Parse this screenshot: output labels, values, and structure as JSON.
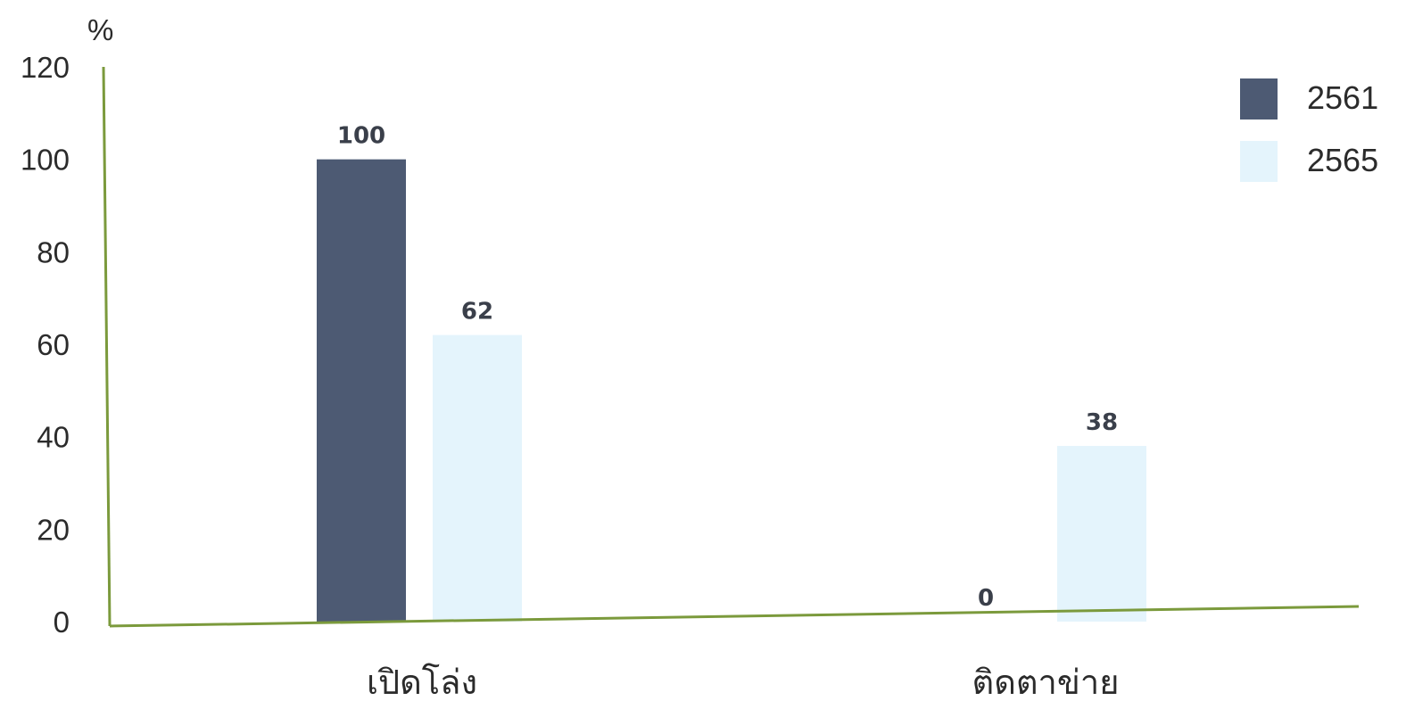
{
  "chart_data": {
    "type": "bar",
    "ylabel": "%",
    "categories": [
      "เปิดโล่ง",
      "ติดตาข่าย"
    ],
    "series": [
      {
        "name": "2561",
        "values": [
          100,
          0
        ],
        "color": "#4d5a73"
      },
      {
        "name": "2565",
        "values": [
          62,
          38
        ],
        "color": "#e4f4fc"
      }
    ],
    "ylim": [
      0,
      120
    ],
    "yticks": [
      0,
      20,
      40,
      60,
      80,
      100,
      120
    ],
    "grid": false,
    "legend": "top-right",
    "axis_color": "#7b9a3c"
  }
}
